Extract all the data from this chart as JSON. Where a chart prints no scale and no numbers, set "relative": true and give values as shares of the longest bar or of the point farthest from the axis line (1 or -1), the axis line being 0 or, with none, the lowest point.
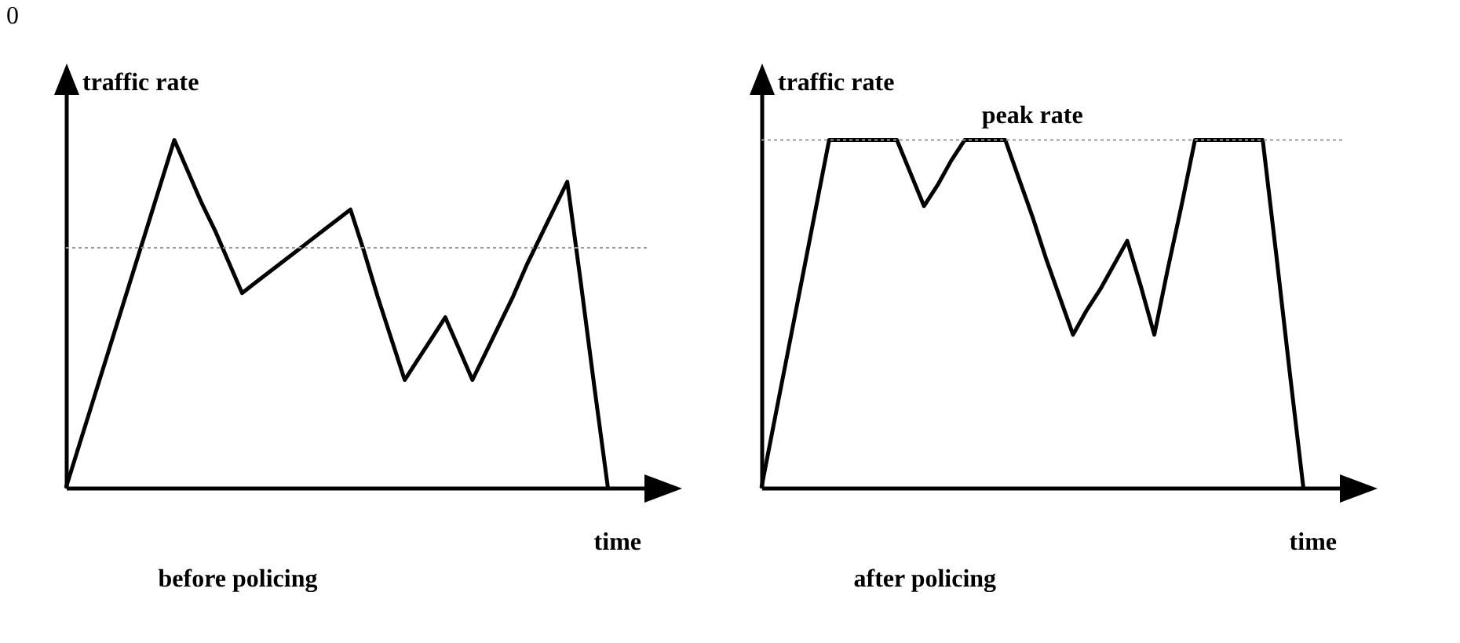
{
  "chart_data": [
    {
      "type": "line",
      "title": "before policing",
      "xlabel": "time",
      "ylabel": "traffic rate",
      "relative": true,
      "annotations": [
        "0"
      ],
      "categories": [
        null,
        null,
        null,
        null,
        null,
        null,
        null,
        null,
        null,
        null,
        null,
        null,
        null,
        null,
        null,
        null,
        null,
        null,
        null,
        null,
        null,
        null,
        null,
        null,
        null,
        null,
        null,
        null,
        null,
        null,
        null,
        null,
        null,
        null,
        null,
        null,
        null,
        null,
        null,
        null,
        null
      ],
      "series": [
        {
          "color": "#000000",
          "values": [
            0,
            0.125,
            0.25,
            0.375,
            0.5,
            0.625,
            0.75,
            0.875,
            1,
            0.91,
            0.82,
            0.74,
            0.65,
            0.56,
            0.59,
            0.62,
            0.65,
            0.68,
            0.71,
            0.74,
            0.77,
            0.8,
            0.68,
            0.55,
            0.43,
            0.31,
            0.37,
            0.43,
            0.49,
            0.4,
            0.31,
            0.39,
            0.47,
            0.55,
            0.64,
            0.72,
            0.8,
            0.88,
            0.59,
            0.29,
            0
          ]
        }
      ],
      "ref_lines": [
        {
          "axis": "y",
          "value": 0.69,
          "color": "#999999",
          "line_style": "dotted"
        }
      ]
    },
    {
      "type": "line",
      "title": "after policing",
      "xlabel": "time",
      "ylabel": "traffic rate",
      "relative": true,
      "categories": [
        null,
        null,
        null,
        null,
        null,
        null,
        null,
        null,
        null,
        null,
        null,
        null,
        null,
        null,
        null,
        null,
        null,
        null,
        null,
        null,
        null,
        null,
        null,
        null,
        null,
        null,
        null,
        null,
        null,
        null,
        null,
        null,
        null,
        null,
        null,
        null,
        null,
        null,
        null,
        null,
        null
      ],
      "series": [
        {
          "color": "#000000",
          "values": [
            0,
            0.2,
            0.4,
            0.6,
            0.8,
            1,
            1,
            1,
            1,
            1,
            1,
            0.905,
            0.81,
            0.87,
            0.94,
            1,
            1,
            1,
            1,
            0.89,
            0.78,
            0.66,
            0.55,
            0.44,
            0.51,
            0.57,
            0.64,
            0.71,
            0.58,
            0.44,
            0.63,
            0.81,
            1,
            1,
            1,
            1,
            1,
            1,
            0.67,
            0.33,
            0
          ]
        }
      ],
      "ref_lines": [
        {
          "axis": "y",
          "value": 1,
          "label": "peak rate",
          "color": "#999999",
          "line_style": "dotted"
        }
      ]
    }
  ]
}
